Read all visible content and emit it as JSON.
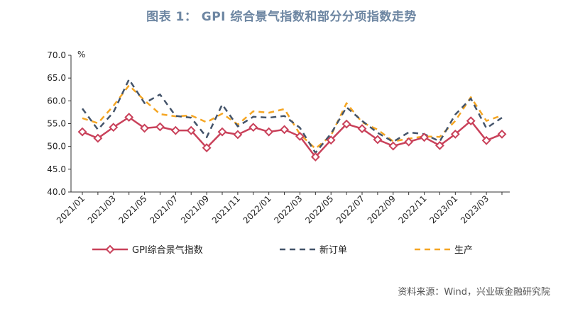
{
  "header": {
    "title": "图表 1：  GPI 综合景气指数和部分分项指数走势"
  },
  "footer": {
    "source": "资料来源：Wind，兴业碳金融研究院"
  },
  "chart_data": {
    "type": "line",
    "title": "图表 1：  GPI 综合景气指数和部分分项指数走势",
    "ylabel": "%",
    "ylim": [
      40,
      70
    ],
    "yticks": [
      "70.0",
      "65.0",
      "60.0",
      "55.0",
      "50.0",
      "45.0",
      "40.0"
    ],
    "x": [
      "2021/01",
      "2021/02",
      "2021/03",
      "2021/04",
      "2021/05",
      "2021/06",
      "2021/07",
      "2021/08",
      "2021/09",
      "2021/10",
      "2021/11",
      "2021/12",
      "2022/01",
      "2022/02",
      "2022/03",
      "2022/04",
      "2022/05",
      "2022/06",
      "2022/07",
      "2022/08",
      "2022/09",
      "2022/10",
      "2022/11",
      "2022/12",
      "2023/01",
      "2023/02",
      "2023/03",
      "2023/04"
    ],
    "xtick_labels": [
      "2021/01",
      "2021/03",
      "2021/05",
      "2021/07",
      "2021/09",
      "2021/11",
      "2022/01",
      "2022/03",
      "2022/05",
      "2022/07",
      "2022/09",
      "2022/11",
      "2023/01",
      "2023/03"
    ],
    "legend_position": "bottom",
    "grid": false,
    "series": [
      {
        "name": "GPI综合景气指数",
        "style": "solid-diamond",
        "color": "#c9415a",
        "values": [
          53.2,
          51.8,
          54.2,
          56.4,
          54.0,
          54.3,
          53.5,
          53.5,
          49.7,
          53.2,
          52.6,
          54.2,
          53.2,
          53.7,
          52.2,
          47.7,
          51.4,
          54.9,
          53.9,
          51.5,
          50.1,
          51.0,
          52.0,
          50.2,
          52.7,
          55.6,
          51.3,
          52.7
        ]
      },
      {
        "name": "新订单",
        "style": "dash",
        "color": "#44546a",
        "values": [
          58.3,
          53.7,
          57.5,
          64.7,
          59.5,
          61.4,
          56.7,
          56.3,
          52.0,
          59.2,
          54.4,
          56.5,
          56.3,
          56.7,
          54.1,
          48.6,
          52.8,
          58.6,
          55.6,
          53.0,
          51.0,
          53.1,
          52.7,
          51.1,
          57.0,
          60.5,
          54.0,
          56.3
        ]
      },
      {
        "name": "生产",
        "style": "dash",
        "color": "#f5a623",
        "values": [
          56.2,
          55.1,
          58.9,
          63.4,
          60.1,
          57.1,
          56.6,
          56.8,
          55.3,
          57.2,
          54.8,
          57.7,
          57.4,
          58.2,
          52.7,
          49.5,
          52.4,
          59.5,
          55.3,
          53.7,
          51.1,
          51.7,
          52.2,
          52.1,
          55.6,
          60.8,
          55.6,
          56.8
        ]
      }
    ]
  }
}
